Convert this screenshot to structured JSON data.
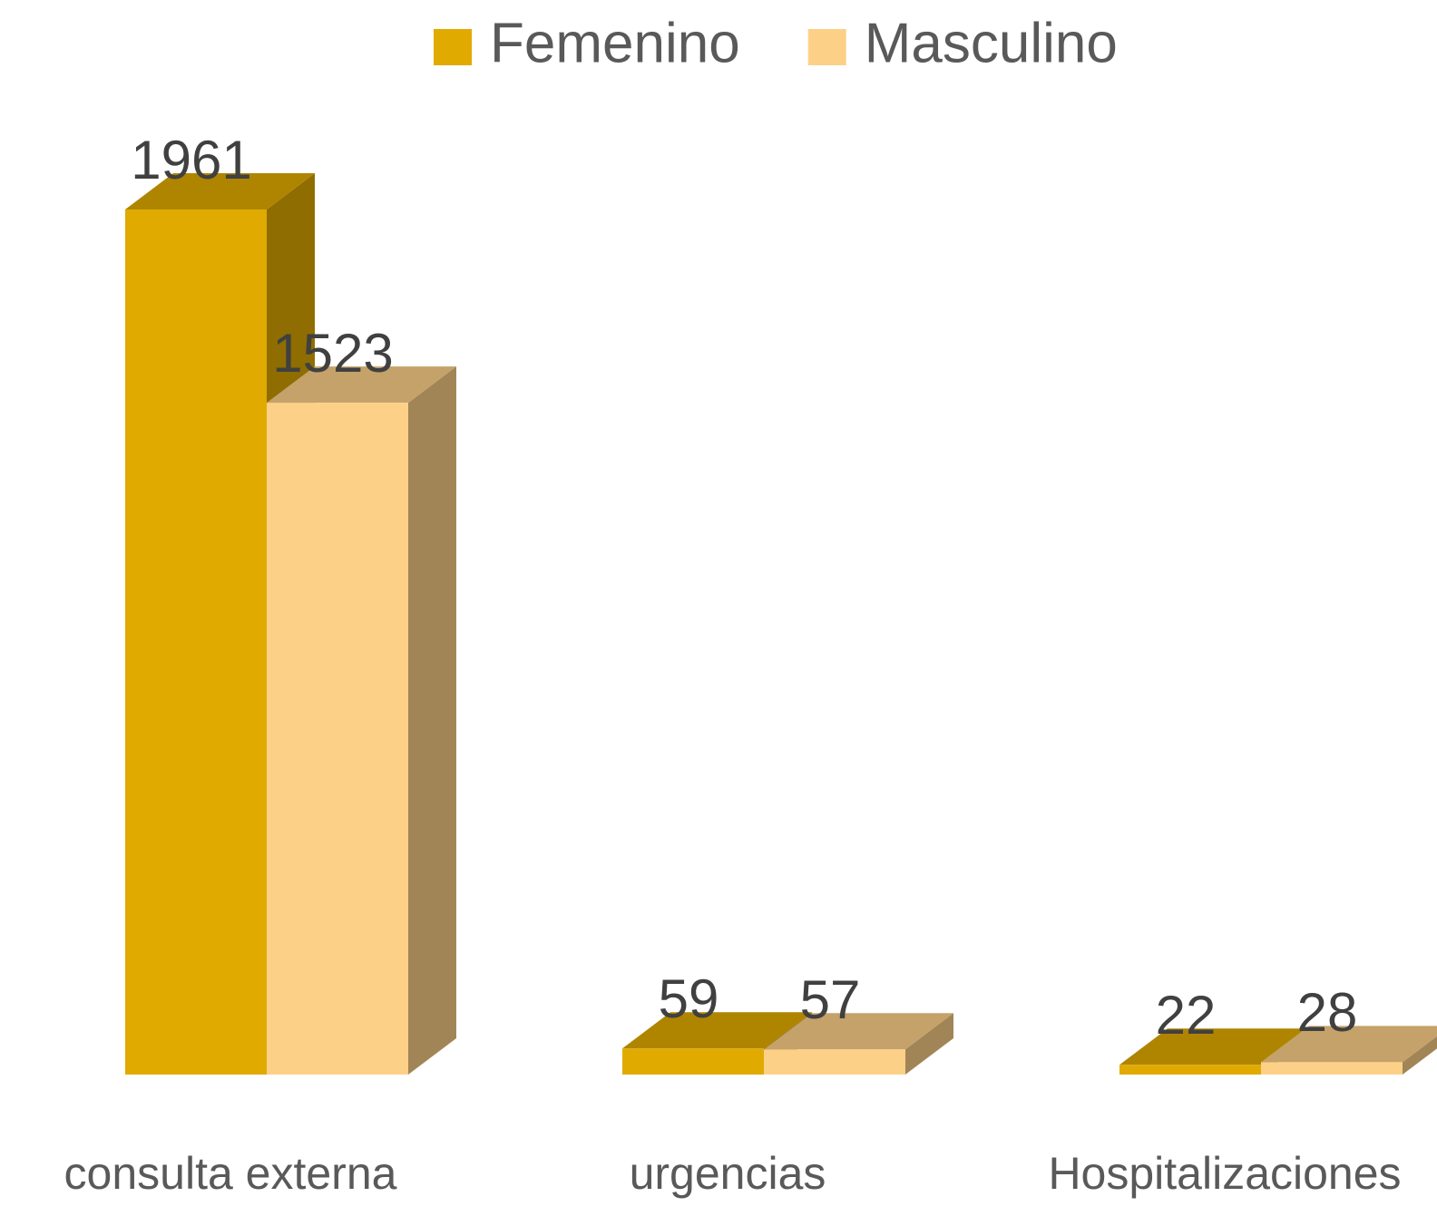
{
  "chart_data": {
    "type": "bar3d",
    "categories": [
      "consulta externa",
      "urgencias",
      "Hospitalizaciones"
    ],
    "series": [
      {
        "name": "Femenino",
        "color": "#E0AA00",
        "values": [
          1961,
          59,
          22
        ]
      },
      {
        "name": "Masculino",
        "color": "#FDD088",
        "values": [
          1523,
          57,
          28
        ]
      }
    ],
    "legend": "top"
  }
}
